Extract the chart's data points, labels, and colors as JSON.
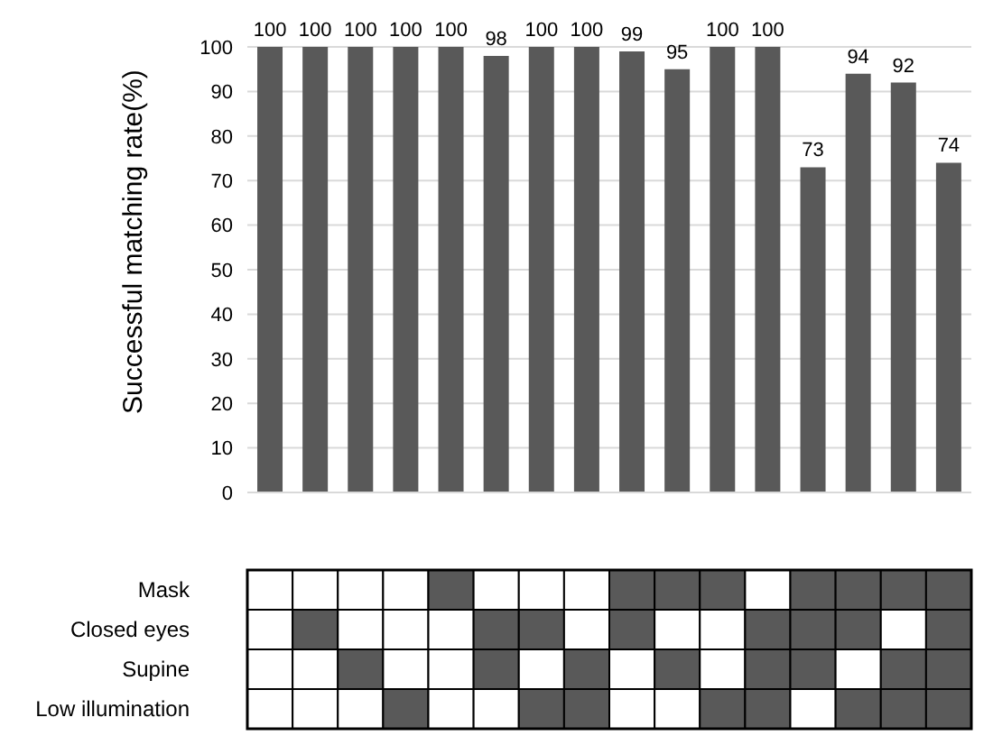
{
  "chart_data": [
    {
      "type": "bar",
      "ylabel": "Successful matching rate(%)",
      "categories": [
        null,
        null,
        null,
        null,
        null,
        null,
        null,
        null,
        null,
        null,
        null,
        null,
        null,
        null,
        null,
        null
      ],
      "values": [
        100,
        100,
        100,
        100,
        100,
        98,
        100,
        100,
        99,
        95,
        100,
        100,
        73,
        94,
        92,
        74
      ],
      "color": "#595959",
      "ylim": [
        0,
        100
      ],
      "yticks": [
        0,
        10,
        20,
        30,
        40,
        50,
        60,
        70,
        80,
        90,
        100
      ],
      "grid": "y",
      "data_labels": true
    },
    {
      "type": "heatmap",
      "categories": [
        null,
        null,
        null,
        null,
        null,
        null,
        null,
        null,
        null,
        null,
        null,
        null,
        null,
        null,
        null,
        null
      ],
      "y_categories": [
        "Mask",
        "Closed eyes",
        "Supine",
        "Low illumination"
      ],
      "cells": [
        [
          false,
          false,
          false,
          false,
          true,
          false,
          false,
          false,
          true,
          true,
          true,
          false,
          true,
          true,
          true,
          true
        ],
        [
          false,
          true,
          false,
          false,
          false,
          true,
          true,
          false,
          true,
          false,
          false,
          true,
          true,
          true,
          false,
          true
        ],
        [
          false,
          false,
          true,
          false,
          false,
          true,
          false,
          true,
          false,
          true,
          false,
          true,
          true,
          false,
          true,
          true
        ],
        [
          false,
          false,
          false,
          true,
          false,
          false,
          true,
          true,
          false,
          false,
          true,
          true,
          false,
          true,
          true,
          true
        ]
      ]
    }
  ]
}
